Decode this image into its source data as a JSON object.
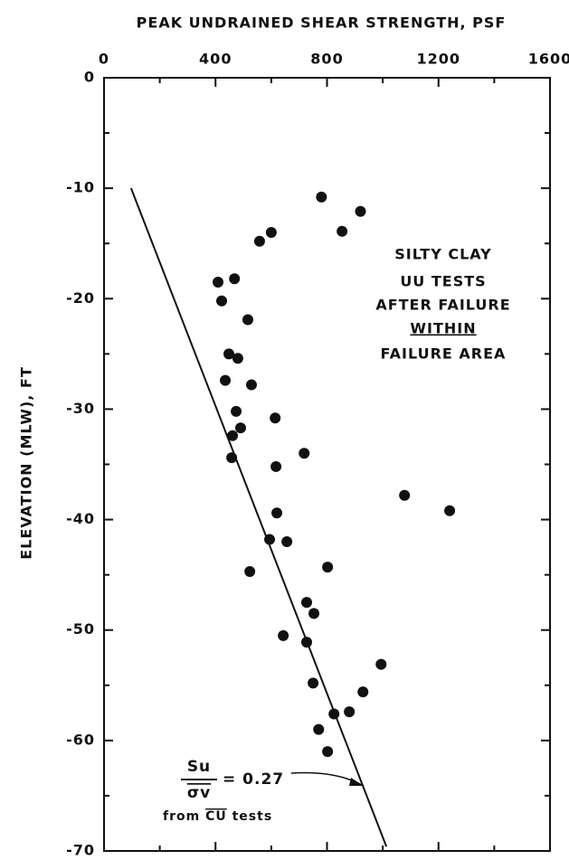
{
  "chart_data": {
    "type": "scatter",
    "title": "PEAK UNDRAINED SHEAR STRENGTH, PSF",
    "y_label": "ELEVATION (MLW), FT",
    "xlim": [
      0,
      1600
    ],
    "xticks": [
      0,
      400,
      800,
      1200,
      1600
    ],
    "xminorticks": [
      200,
      600,
      1000,
      1400
    ],
    "ylim": [
      -70,
      0
    ],
    "yticks": [
      0,
      -10,
      -20,
      -30,
      -40,
      -50,
      -60,
      -70
    ],
    "yminorticks": [
      -5,
      -15,
      -25,
      -35,
      -45,
      -55,
      -65
    ],
    "points": {
      "color": "#111111",
      "x": [
        780,
        854,
        920,
        600,
        558,
        409,
        468,
        422,
        516,
        448,
        480,
        435,
        529,
        474,
        614,
        490,
        461,
        718,
        458,
        617,
        1078,
        1240,
        620,
        594,
        656,
        802,
        523,
        727,
        753,
        643,
        727,
        994,
        750,
        929,
        880,
        825,
        770,
        802
      ],
      "y": [
        -10.8,
        -13.9,
        -12.1,
        -14,
        -14.8,
        -18.5,
        -18.2,
        -20.2,
        -21.9,
        -25,
        -25.4,
        -27.4,
        -27.8,
        -30.2,
        -30.8,
        -31.7,
        -32.4,
        -34,
        -34.4,
        -35.2,
        -37.8,
        -39.2,
        -39.4,
        -41.8,
        -42,
        -44.3,
        -44.7,
        -47.5,
        -48.5,
        -50.5,
        -51.1,
        -53.1,
        -54.8,
        -55.6,
        -57.4,
        -57.6,
        -59,
        -61
      ]
    },
    "line": {
      "color": "#111111",
      "x": [
        97,
        1013
      ],
      "y": [
        -10,
        -69.6
      ]
    },
    "annotations": [
      "SILTY CLAY",
      "UU TESTS",
      "AFTER FAILURE",
      "WITHIN",
      "FAILURE AREA"
    ],
    "equation": {
      "numerator": "Su",
      "denominator": "σv",
      "value": "= 0.27",
      "note_prefix": "from",
      "note_overbar": "CU",
      "note_suffix": "tests"
    }
  }
}
